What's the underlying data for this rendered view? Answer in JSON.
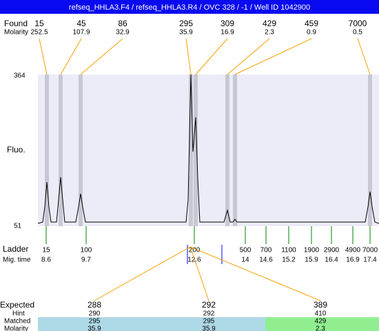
{
  "header": {
    "title": "refseq_HHLA3.F4 / refseq_HHLA3.R4 / OVC 328 / -1 / Well ID 1042900"
  },
  "found": {
    "label": "Found",
    "molarity_label": "Molarity",
    "sizes": [
      "15",
      "45",
      "86",
      "295",
      "309",
      "429",
      "459",
      "7000"
    ],
    "molarities": [
      "252.5",
      "107.9",
      "32.9",
      "35.9",
      "16.9",
      "2.3",
      "0.9",
      "0.5"
    ]
  },
  "plot": {
    "y_label": "Fluo.",
    "y_max": "364",
    "y_min": "51"
  },
  "ladder": {
    "label": "Ladder",
    "time_label": "Mig. time",
    "sizes": [
      "15",
      "100",
      "200",
      "500",
      "700",
      "1100",
      "1900",
      "2900",
      "4900",
      "7000"
    ],
    "times": [
      "8.6",
      "9.7",
      "12.6",
      "14",
      "14.6",
      "15.2",
      "15.9",
      "16.4",
      "16.9",
      "17.4"
    ]
  },
  "expected": {
    "label": "Expected",
    "hint_label": "Hint",
    "matched_label": "Matched",
    "molarity_label": "Molarity",
    "columns": [
      {
        "expected": "288",
        "hint": "290",
        "matched": "295",
        "molarity": "35.9"
      },
      {
        "expected": "292",
        "hint": "292",
        "matched": "295",
        "molarity": "35.9"
      },
      {
        "expected": "389",
        "hint": "410",
        "matched": "429",
        "molarity": "2.3"
      }
    ]
  }
}
